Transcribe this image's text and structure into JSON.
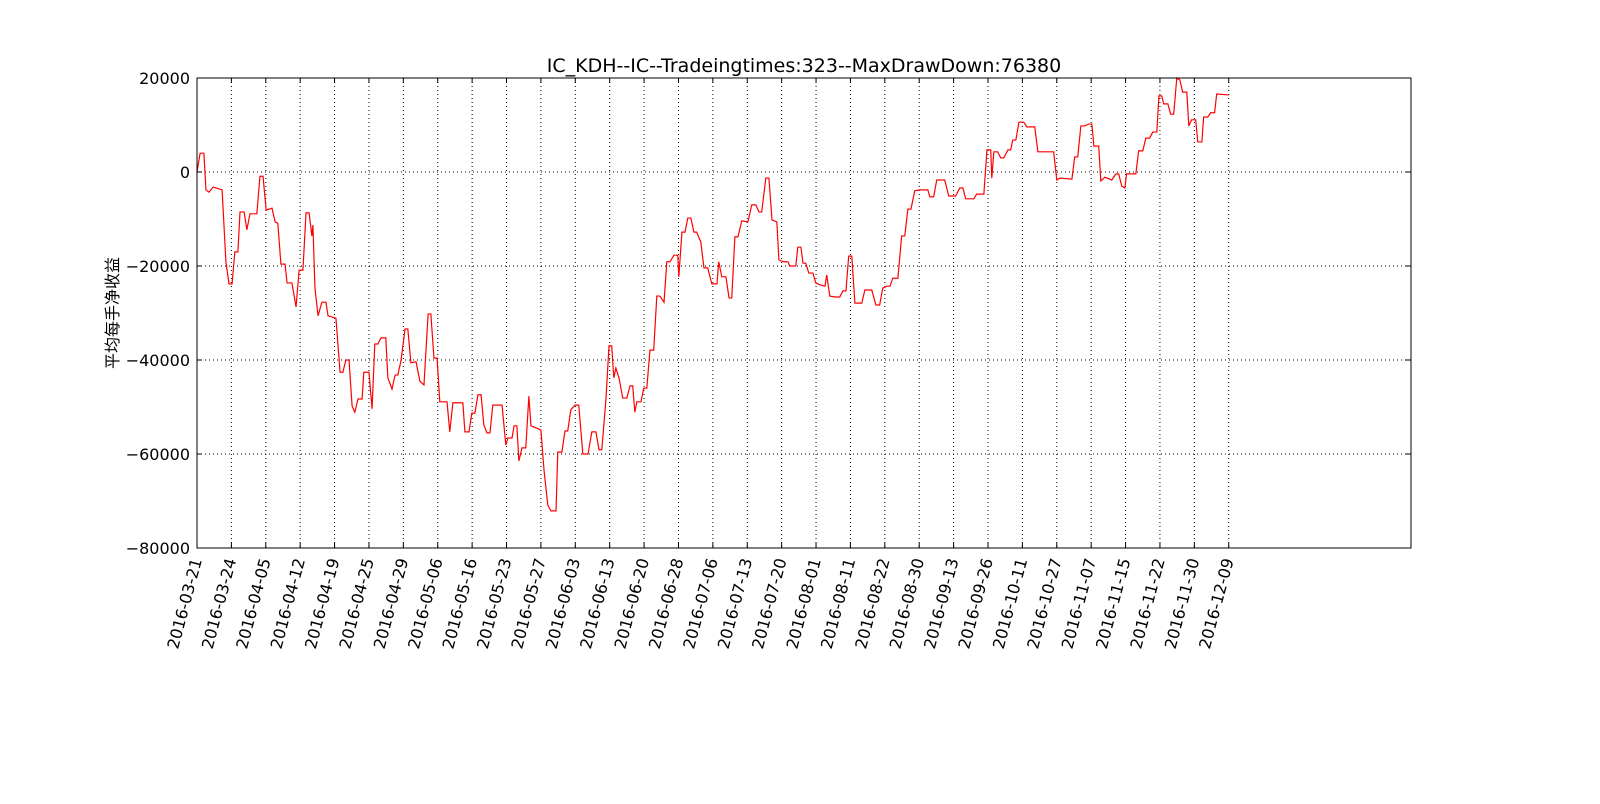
{
  "chart_data": {
    "type": "line",
    "title": "IC_KDH--IC--Tradeingtimes:323--MaxDrawDown:76380",
    "y_label": "平均每手净收益",
    "color": "#ff0000",
    "grid": true,
    "xlim": [
      0,
      353
    ],
    "ylim": [
      -80000,
      20000
    ],
    "yticks": [
      {
        "value": -80000,
        "label": "−80000"
      },
      {
        "value": -60000,
        "label": "−60000"
      },
      {
        "value": -40000,
        "label": "−40000"
      },
      {
        "value": -20000,
        "label": "−20000"
      },
      0,
      20000
    ],
    "xticks": [
      {
        "value": 0,
        "label": "2016-03-21"
      },
      {
        "value": 10,
        "label": "2016-03-24"
      },
      {
        "value": 20,
        "label": "2016-04-05"
      },
      {
        "value": 30,
        "label": "2016-04-12"
      },
      {
        "value": 40,
        "label": "2016-04-19"
      },
      {
        "value": 50,
        "label": "2016-04-25"
      },
      {
        "value": 60,
        "label": "2016-04-29"
      },
      {
        "value": 70,
        "label": "2016-05-06"
      },
      {
        "value": 80,
        "label": "2016-05-16"
      },
      {
        "value": 90,
        "label": "2016-05-23"
      },
      {
        "value": 100,
        "label": "2016-05-27"
      },
      {
        "value": 110,
        "label": "2016-06-03"
      },
      {
        "value": 120,
        "label": "2016-06-13"
      },
      {
        "value": 130,
        "label": "2016-06-20"
      },
      {
        "value": 140,
        "label": "2016-06-28"
      },
      {
        "value": 150,
        "label": "2016-07-06"
      },
      {
        "value": 160,
        "label": "2016-07-13"
      },
      {
        "value": 170,
        "label": "2016-07-20"
      },
      {
        "value": 180,
        "label": "2016-08-01"
      },
      {
        "value": 190,
        "label": "2016-08-11"
      },
      {
        "value": 200,
        "label": "2016-08-22"
      },
      {
        "value": 210,
        "label": "2016-08-30"
      },
      {
        "value": 220,
        "label": "2016-09-13"
      },
      {
        "value": 230,
        "label": "2016-09-26"
      },
      {
        "value": 240,
        "label": "2016-10-11"
      },
      {
        "value": 250,
        "label": "2016-10-27"
      },
      {
        "value": 260,
        "label": "2016-11-07"
      },
      {
        "value": 270,
        "label": "2016-11-15"
      },
      {
        "value": 280,
        "label": "2016-11-22"
      },
      {
        "value": 290,
        "label": "2016-11-30"
      },
      {
        "value": 300,
        "label": "2016-12-09"
      }
    ],
    "x": [
      0,
      0.9,
      2.0,
      2.6,
      3.5,
      4.7,
      6.4,
      7.3,
      8.4,
      9.3,
      10.2,
      11.0,
      11.9,
      12.5,
      13.7,
      14.5,
      15.4,
      17.4,
      18.3,
      19.2,
      20.1,
      21.8,
      22.7,
      23.5,
      24.4,
      25.6,
      26.2,
      27.6,
      28.8,
      29.7,
      30.8,
      31.7,
      32.6,
      33.4,
      33.7,
      34.3,
      35.2,
      36.3,
      37.5,
      38.1,
      40.4,
      41.6,
      42.4,
      43.3,
      44.2,
      45.1,
      45.9,
      46.8,
      48.0,
      48.5,
      50.0,
      50.9,
      51.7,
      52.6,
      53.5,
      54.9,
      55.5,
      56.7,
      57.6,
      58.4,
      59.3,
      60.5,
      61.3,
      62.2,
      63.7,
      64.8,
      66.0,
      67.2,
      68.0,
      68.9,
      69.8,
      70.6,
      72.7,
      73.5,
      74.4,
      77.3,
      77.9,
      79.1,
      79.9,
      80.8,
      81.7,
      82.6,
      83.4,
      84.3,
      85.2,
      86.0,
      88.7,
      89.8,
      90.4,
      91.6,
      92.2,
      93.0,
      93.6,
      94.5,
      95.6,
      96.5,
      97.1,
      98.8,
      100.0,
      100.9,
      102.0,
      102.9,
      104.4,
      104.9,
      106.1,
      107.0,
      107.8,
      108.7,
      109.9,
      111.0,
      112.2,
      113.7,
      114.8,
      116.0,
      116.9,
      117.7,
      118.9,
      119.8,
      120.6,
      121.2,
      121.8,
      122.7,
      123.8,
      125.0,
      125.9,
      126.7,
      127.3,
      127.9,
      129.1,
      129.9,
      130.8,
      131.7,
      132.8,
      133.7,
      134.6,
      135.8,
      136.6,
      137.5,
      138.7,
      139.8,
      140.1,
      141.0,
      141.9,
      142.7,
      143.6,
      144.5,
      145.3,
      146.5,
      147.4,
      148.5,
      149.7,
      151.2,
      151.7,
      152.6,
      153.8,
      154.7,
      155.5,
      156.4,
      157.3,
      158.4,
      160.2,
      161.3,
      162.5,
      163.4,
      164.2,
      165.4,
      166.3,
      167.2,
      168.6,
      169.2,
      170.6,
      171.8,
      172.4,
      174.1,
      174.7,
      175.6,
      176.2,
      177.0,
      177.9,
      179.1,
      179.9,
      181.1,
      182.6,
      183.1,
      184.0,
      185.5,
      186.9,
      187.8,
      188.7,
      189.5,
      190.4,
      191.3,
      193.3,
      194.2,
      196.2,
      197.4,
      198.5,
      199.4,
      200.6,
      201.5,
      202.3,
      203.8,
      204.9,
      205.8,
      206.7,
      207.6,
      208.7,
      210.2,
      212.5,
      213.1,
      214.2,
      215.1,
      217.4,
      218.6,
      220.6,
      221.8,
      222.7,
      223.5,
      225.9,
      226.7,
      228.8,
      229.7,
      230.8,
      231.1,
      231.7,
      232.8,
      233.7,
      234.6,
      235.8,
      236.6,
      237.2,
      238.1,
      239.0,
      240.4,
      241.3,
      243.6,
      244.5,
      249.1,
      250.0,
      250.9,
      254.4,
      255.2,
      256.1,
      257.0,
      258.1,
      259.3,
      260.2,
      260.8,
      262.2,
      262.8,
      264.0,
      266.0,
      267.2,
      268.0,
      268.9,
      269.8,
      270.3,
      273.0,
      273.8,
      275.0,
      275.9,
      277.0,
      277.9,
      279.1,
      279.7,
      280.5,
      281.1,
      282.3,
      283.1,
      284.0,
      284.9,
      285.8,
      286.6,
      287.8,
      288.4,
      289.2,
      290.4,
      291.0,
      292.2,
      292.7,
      293.9,
      294.8,
      295.9,
      296.5,
      300.0
    ],
    "values": [
      0,
      4000,
      4000,
      -3800,
      -4300,
      -3200,
      -3600,
      -3800,
      -19100,
      -23800,
      -23800,
      -17000,
      -17000,
      -8500,
      -8500,
      -12300,
      -8900,
      -8900,
      -900,
      -900,
      -8100,
      -7700,
      -10600,
      -10900,
      -19600,
      -19600,
      -23600,
      -23600,
      -28700,
      -20900,
      -20900,
      -8700,
      -8700,
      -13600,
      -11300,
      -24700,
      -30600,
      -27700,
      -27700,
      -30600,
      -31100,
      -42600,
      -42600,
      -40000,
      -40000,
      -49800,
      -51100,
      -48300,
      -48300,
      -42600,
      -42600,
      -50400,
      -36600,
      -36600,
      -35300,
      -35300,
      -43800,
      -46200,
      -43200,
      -43200,
      -40200,
      -33400,
      -33400,
      -40600,
      -40400,
      -44500,
      -45300,
      -30200,
      -30200,
      -39600,
      -39600,
      -48900,
      -48900,
      -55300,
      -49100,
      -49100,
      -55300,
      -55300,
      -51300,
      -51300,
      -47400,
      -47400,
      -53800,
      -55500,
      -55500,
      -49600,
      -49600,
      -58100,
      -56600,
      -56600,
      -54000,
      -54000,
      -61500,
      -58700,
      -58700,
      -47700,
      -54000,
      -54500,
      -54900,
      -63400,
      -70900,
      -72100,
      -72100,
      -59600,
      -59600,
      -55100,
      -55100,
      -50600,
      -49600,
      -49600,
      -60000,
      -60000,
      -55300,
      -55300,
      -59100,
      -59100,
      -48500,
      -37000,
      -37000,
      -43800,
      -41700,
      -43800,
      -48100,
      -48100,
      -45500,
      -45500,
      -51100,
      -48900,
      -48900,
      -46000,
      -46000,
      -37900,
      -37900,
      -26400,
      -26400,
      -27700,
      -19100,
      -19100,
      -17700,
      -17700,
      -22300,
      -12800,
      -12800,
      -9800,
      -9800,
      -12800,
      -12800,
      -14900,
      -20400,
      -20400,
      -23800,
      -23800,
      -19100,
      -22300,
      -22300,
      -26800,
      -26800,
      -13800,
      -13800,
      -10400,
      -10600,
      -7000,
      -7000,
      -8500,
      -8500,
      -1300,
      -1300,
      -10200,
      -10600,
      -18700,
      -19100,
      -19100,
      -20000,
      -20000,
      -16000,
      -16000,
      -19400,
      -19400,
      -21500,
      -21500,
      -23600,
      -24000,
      -24300,
      -21900,
      -26400,
      -26600,
      -26600,
      -25300,
      -25300,
      -17900,
      -17900,
      -27900,
      -27900,
      -25100,
      -25100,
      -28300,
      -28300,
      -24700,
      -24300,
      -24300,
      -22600,
      -22600,
      -13600,
      -13600,
      -7900,
      -7900,
      -4000,
      -3800,
      -3800,
      -5300,
      -5300,
      -1700,
      -1700,
      -5100,
      -5100,
      -3400,
      -3400,
      -5700,
      -5700,
      -4700,
      -4700,
      4700,
      4700,
      -1300,
      4300,
      4300,
      3000,
      3000,
      4700,
      4700,
      6800,
      6800,
      10600,
      10600,
      9600,
      9600,
      4300,
      4300,
      -1700,
      -1300,
      -1500,
      3200,
      3200,
      9800,
      9800,
      10200,
      10200,
      5500,
      5500,
      -1900,
      -1100,
      -1700,
      -400,
      -400,
      -3000,
      -3400,
      -400,
      -400,
      4500,
      4500,
      7200,
      7200,
      8500,
      8500,
      16200,
      16200,
      14500,
      14500,
      12300,
      12300,
      20000,
      19600,
      17000,
      17000,
      9800,
      11100,
      11100,
      6400,
      6400,
      11700,
      11700,
      12600,
      12600,
      16600,
      16400
    ]
  }
}
